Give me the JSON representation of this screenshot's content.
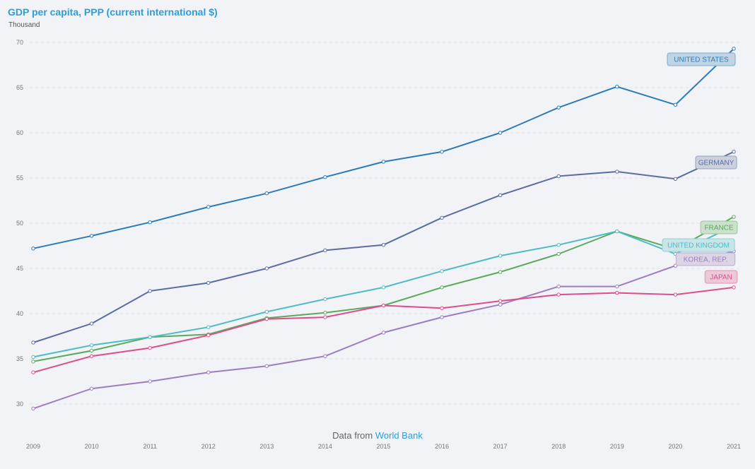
{
  "title": "GDP per capita, PPP (current international $)",
  "unit_label": "Thousand",
  "source": {
    "prefix": "Data from",
    "link_text": "World Bank"
  },
  "colors": {
    "title": "#2a9fd8",
    "background": "#f2f3f7",
    "grid": "#dfe2e8"
  },
  "chart_data": {
    "type": "line",
    "title": "GDP per capita, PPP (current international $)",
    "ylabel": "Thousand",
    "xlabel": "",
    "grid": true,
    "ylim": [
      27.5,
      71
    ],
    "yticks": [
      30,
      35,
      40,
      45,
      50,
      55,
      60,
      65,
      70
    ],
    "x": [
      "2009",
      "2010",
      "2011",
      "2012",
      "2013",
      "2014",
      "2015",
      "2016",
      "2017",
      "2018",
      "2019",
      "2020",
      "2021"
    ],
    "series": [
      {
        "name": "UNITED STATES",
        "color": "#2c7bb6",
        "values": [
          47.2,
          48.6,
          50.1,
          51.8,
          53.3,
          55.1,
          56.8,
          57.9,
          60.0,
          62.8,
          65.1,
          63.1,
          69.3
        ]
      },
      {
        "name": "GERMANY",
        "color": "#5a6e9e",
        "values": [
          36.8,
          38.9,
          42.5,
          43.4,
          45.0,
          47.0,
          47.6,
          50.6,
          53.1,
          55.2,
          55.7,
          54.9,
          57.9
        ]
      },
      {
        "name": "FRANCE",
        "color": "#5ca85c",
        "values": [
          34.7,
          35.9,
          37.4,
          37.7,
          39.5,
          40.1,
          40.9,
          42.9,
          44.6,
          46.6,
          49.1,
          47.1,
          50.7
        ]
      },
      {
        "name": "UNITED KINGDOM",
        "color": "#4cbcc4",
        "values": [
          35.2,
          36.5,
          37.4,
          38.5,
          40.2,
          41.6,
          42.9,
          44.7,
          46.4,
          47.6,
          49.1,
          46.6,
          49.7
        ]
      },
      {
        "name": "KOREA, REP.",
        "color": "#9b7ebd",
        "values": [
          29.5,
          31.7,
          32.5,
          33.5,
          34.2,
          35.3,
          37.9,
          39.6,
          41.0,
          43.0,
          43.0,
          45.3,
          46.9
        ]
      },
      {
        "name": "JAPAN",
        "color": "#de4d8b",
        "values": [
          33.5,
          35.3,
          36.2,
          37.6,
          39.4,
          39.6,
          40.9,
          40.6,
          41.4,
          42.1,
          42.3,
          42.1,
          42.9
        ]
      }
    ]
  }
}
